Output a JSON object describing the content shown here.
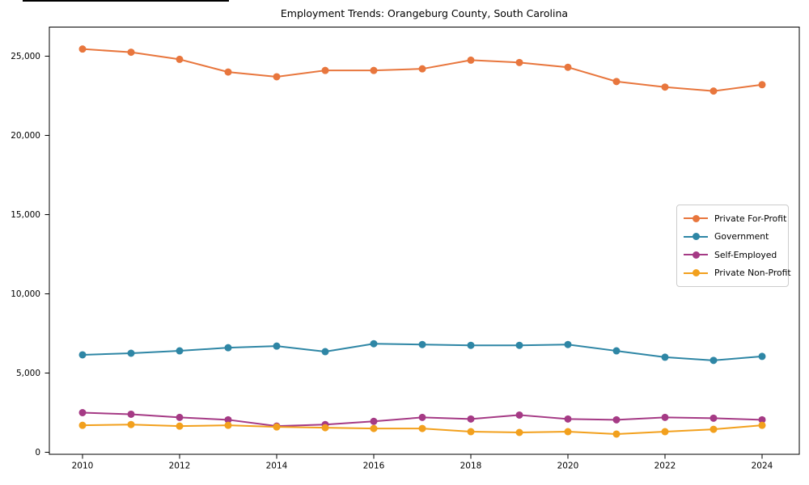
{
  "chart_data": {
    "type": "line",
    "title": "Employment Trends: Orangeburg County, South Carolina",
    "xlabel": "",
    "ylabel": "",
    "grid": false,
    "legend_position": "center right",
    "x": [
      2010,
      2011,
      2012,
      2013,
      2014,
      2015,
      2016,
      2017,
      2018,
      2019,
      2020,
      2021,
      2022,
      2023,
      2024
    ],
    "x_ticks": [
      2010,
      2012,
      2014,
      2016,
      2018,
      2020,
      2022,
      2024
    ],
    "x_tick_labels": [
      "2010",
      "2012",
      "2014",
      "2016",
      "2018",
      "2020",
      "2022",
      "2024"
    ],
    "y_ticks": [
      0,
      5000,
      10000,
      15000,
      20000,
      25000
    ],
    "y_tick_labels": [
      "0",
      "5,000",
      "10,000",
      "15,000",
      "20,000",
      "25,000"
    ],
    "ylim": [
      0,
      26900
    ],
    "series": [
      {
        "name": "Private For-Profit",
        "color": "#e8763d",
        "values": [
          25450,
          25250,
          24800,
          24000,
          23700,
          24100,
          24100,
          24200,
          24750,
          24600,
          24300,
          23400,
          23050,
          22800,
          23200
        ]
      },
      {
        "name": "Government",
        "color": "#2e86a5",
        "values": [
          6150,
          6250,
          6400,
          6600,
          6700,
          6350,
          6850,
          6800,
          6750,
          6750,
          6800,
          6400,
          6000,
          5800,
          6050
        ]
      },
      {
        "name": "Self-Employed",
        "color": "#a53a85",
        "values": [
          2500,
          2400,
          2200,
          2050,
          1650,
          1750,
          1950,
          2200,
          2100,
          2350,
          2100,
          2050,
          2200,
          2150,
          2050
        ]
      },
      {
        "name": "Private Non-Profit",
        "color": "#f2a01d",
        "values": [
          1700,
          1750,
          1650,
          1700,
          1600,
          1550,
          1500,
          1500,
          1300,
          1250,
          1300,
          1150,
          1300,
          1450,
          1700
        ]
      }
    ]
  }
}
